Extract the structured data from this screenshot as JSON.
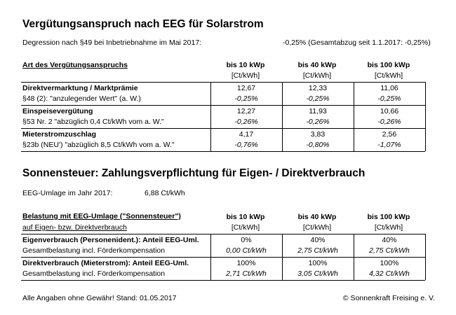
{
  "title1": "Vergütungsanspruch nach EEG für Solarstrom",
  "degression": {
    "label": "Degression nach §49 bei Inbetriebnahme im Mai 2017:",
    "value": "-0,25% (Gesamtabzug seit 1.1.2017: -0,25%)"
  },
  "table1": {
    "header_label": "Art des Vergütungsanspruchs",
    "cols": [
      "bis 10 kWp",
      "bis 40 kWp",
      "bis 100 kWp"
    ],
    "unit": "[Ct/kWh]",
    "rows": [
      {
        "label": "Direktvermarktung / Marktprämie",
        "sub": "§48 (2): \"anzulegender Wert\" (a. W.)",
        "values": [
          "12,67",
          "12,33",
          "11,06"
        ],
        "pcts": [
          "-0,25%",
          "-0,25%",
          "-0,25%"
        ]
      },
      {
        "label": "Einspeisevergütung",
        "sub": "§53 Nr. 2 \"abzüglich 0,4 Ct/kWh vom a. W.\"",
        "values": [
          "12,27",
          "11,93",
          "10,66"
        ],
        "pcts": [
          "-0,26%",
          "-0,26%",
          "-0,26%"
        ]
      },
      {
        "label": "Mieterstromzuschlag",
        "sub": "§23b (NEU') \"abzüglich 8,5 Ct/kWh vom a. W.\"",
        "values": [
          "4,17",
          "3,83",
          "2,56"
        ],
        "pcts": [
          "-0,76%",
          "-0,80%",
          "-1,07%"
        ]
      }
    ]
  },
  "title2": "Sonnensteuer: Zahlungsverpflichtung für Eigen- / Direktverbrauch",
  "eeg": {
    "label": "EEG-Umlage im Jahr 2017:",
    "value": "6,88 Ct/kWh"
  },
  "table2": {
    "header_label": "Belastung mit EEG-Umlage (\"Sonnensteuer\")",
    "header_sub": "auf Eigen- bzw. Direktverbrauch",
    "cols": [
      "bis 10 kWp",
      "bis 40 kWp",
      "bis 100 kWp"
    ],
    "unit": "[Ct/kWh]",
    "rows": [
      {
        "label": "Eigenverbrauch (Personenident.): Anteil EEG-Uml.",
        "sub": "Gesamtbelastung incl. Förderkompensation",
        "values": [
          "0%",
          "40%",
          "40%"
        ],
        "totals": [
          "0,00 Ct/kWh",
          "2,75 Ct/kWh",
          "2,75 Ct/kWh"
        ]
      },
      {
        "label": "Direktverbrauch (Mieterstrom): Anteil EEG-Uml.",
        "sub": "Gesamtbelastung incl. Förderkompensation",
        "values": [
          "100%",
          "100%",
          "100%"
        ],
        "totals": [
          "2,71 Ct/kWh",
          "3,05 Ct/kWh",
          "4,32 Ct/kWh"
        ]
      }
    ]
  },
  "footer": {
    "left": "Alle Angaben ohne Gewähr! Stand: 01.05.2017",
    "right": "© Sonnenkraft Freising e. V."
  }
}
